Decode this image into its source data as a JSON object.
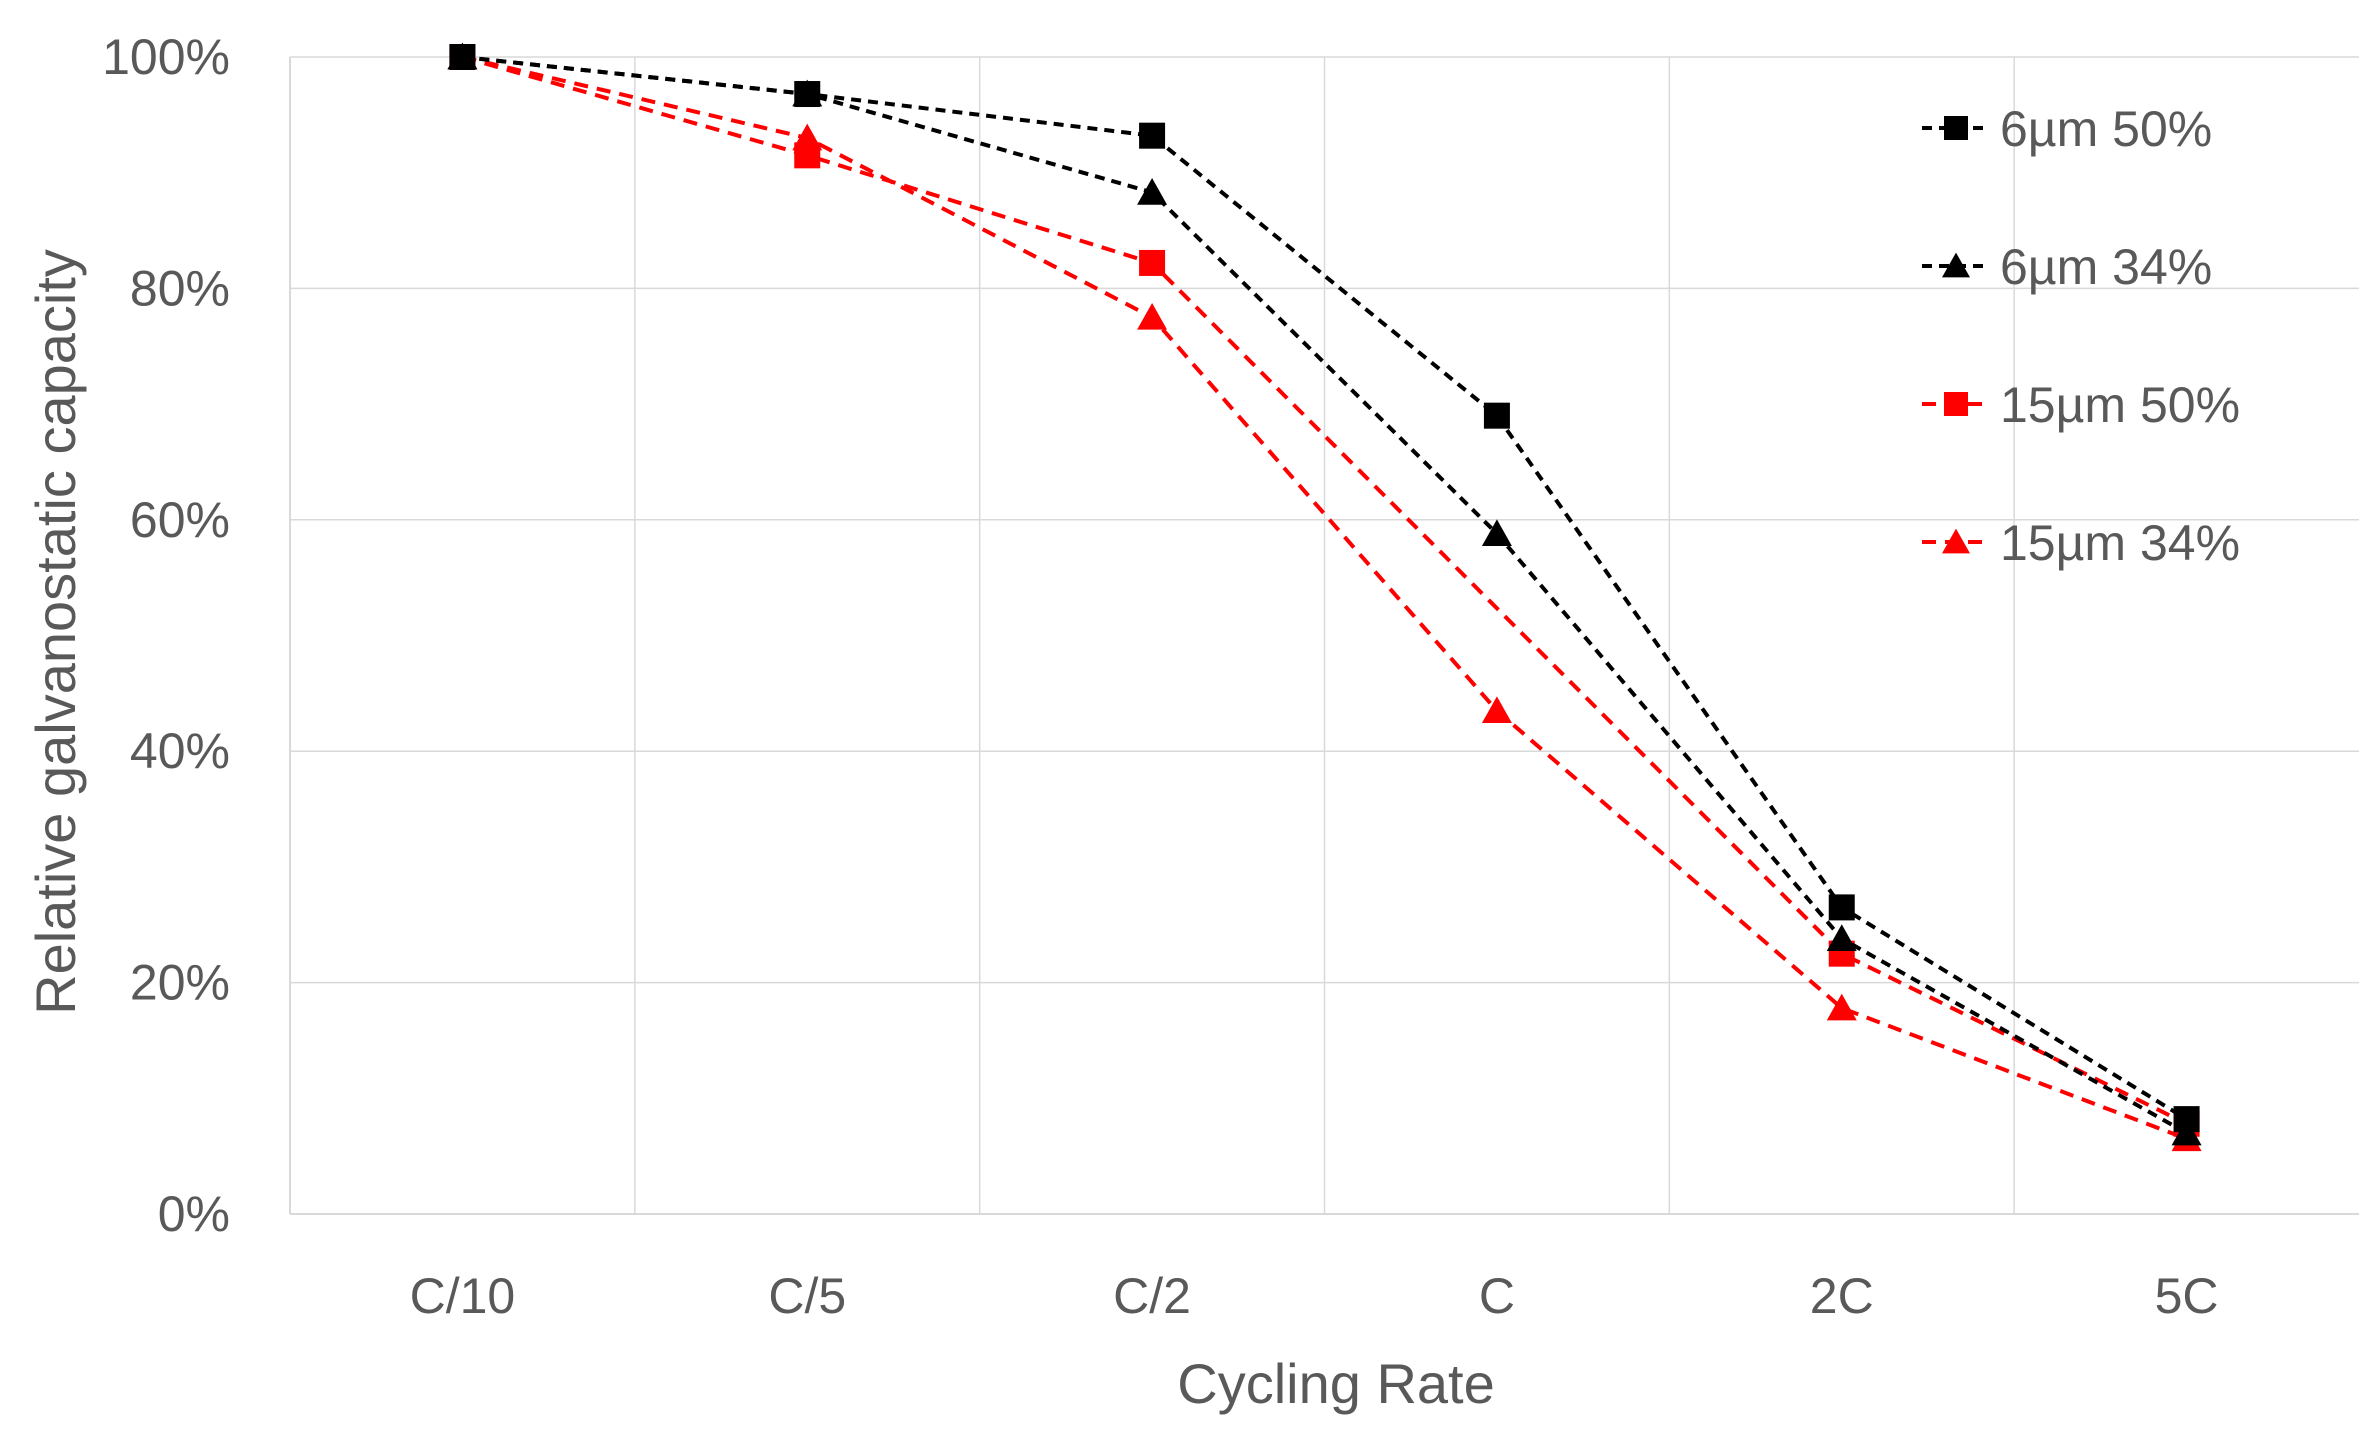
{
  "chart_data": {
    "type": "line",
    "categories": [
      "C/10",
      "C/5",
      "C/2",
      "C",
      "2C",
      "5C"
    ],
    "xlabel": "Cycling Rate",
    "ylabel": "Relative galvanostatic capacity",
    "ylim": [
      0,
      100
    ],
    "ytick_step": 20,
    "ytick_format": "percent",
    "grid": true,
    "legend_position": "top-right",
    "series": [
      {
        "name": "6µm 50%",
        "color": "#000000",
        "marker": "square",
        "values": [
          100,
          96.8,
          93.2,
          69.0,
          26.5,
          8.2
        ]
      },
      {
        "name": "6µm 34%",
        "color": "#000000",
        "marker": "triangle",
        "values": [
          100,
          96.8,
          88.3,
          58.8,
          23.8,
          7.0
        ]
      },
      {
        "name": "15µm 50%",
        "color": "#ff0000",
        "marker": "square",
        "values": [
          100,
          91.5,
          82.2,
          null,
          22.5,
          7.8
        ]
      },
      {
        "name": "15µm 34%",
        "color": "#ff0000",
        "marker": "triangle",
        "values": [
          100,
          93.0,
          77.5,
          43.5,
          17.8,
          6.5
        ]
      }
    ]
  }
}
